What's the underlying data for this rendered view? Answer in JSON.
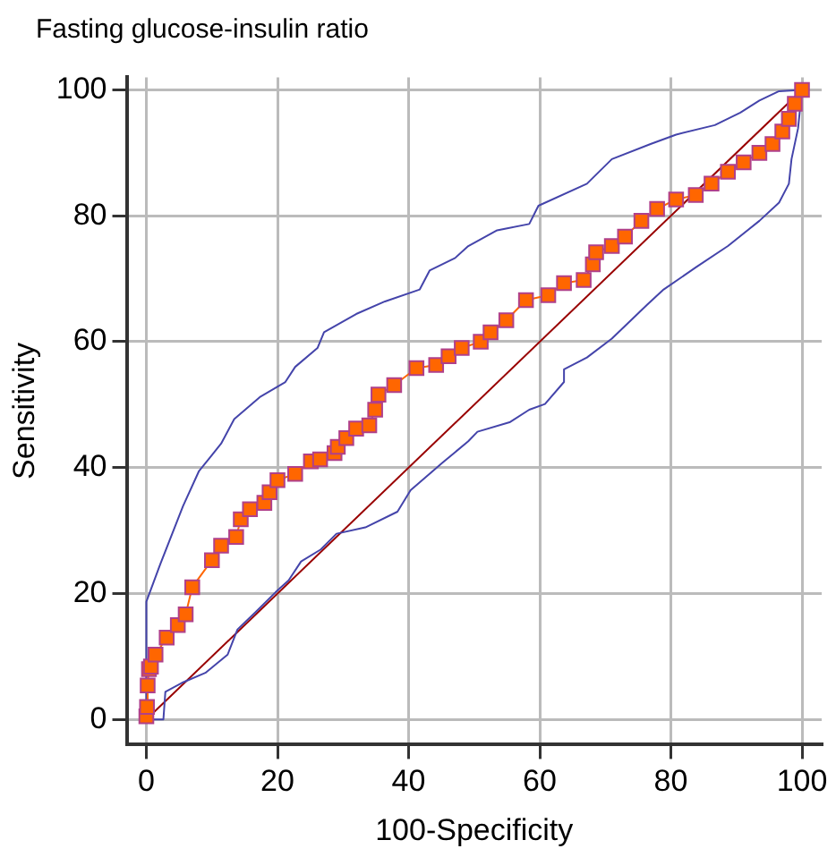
{
  "chart_data": {
    "type": "line",
    "title": "Fasting glucose-insulin ratio",
    "xlabel": "100-Specificity",
    "ylabel": "Sensitivity",
    "xlim": [
      -3,
      103
    ],
    "ylim": [
      -4,
      102
    ],
    "xticks": [
      0,
      20,
      40,
      60,
      80,
      100
    ],
    "yticks": [
      0,
      20,
      40,
      60,
      80,
      100
    ],
    "grid": true,
    "legend": false,
    "series": [
      {
        "color": "#990000",
        "marker": "none",
        "x": [
          0,
          100
        ],
        "values": [
          0,
          100
        ]
      },
      {
        "color": "#4444aa",
        "marker": "none",
        "x": [
          0,
          0,
          2.1,
          5.6,
          8,
          11.4,
          13.4,
          17.3,
          21.2,
          22.7,
          26.1,
          27.1,
          32,
          36.4,
          41.7,
          43.2,
          47.1,
          49.1,
          53.5,
          58.4,
          59.8,
          67.2,
          71,
          76.9,
          80.8,
          86.7,
          90.6,
          93.5,
          96.5,
          100
        ],
        "values": [
          0,
          18.7,
          24.6,
          33.9,
          39.4,
          43.8,
          47.7,
          51.2,
          53.6,
          56,
          59,
          61.5,
          64.4,
          66.4,
          68.3,
          71.3,
          73.3,
          75.2,
          77.7,
          78.7,
          81.6,
          85.1,
          89,
          91.4,
          92.9,
          94.4,
          96.4,
          98.3,
          99.8,
          100
        ]
      },
      {
        "color": "#4444aa",
        "marker": "none",
        "x": [
          0,
          2.6,
          2.9,
          5.6,
          9,
          12.4,
          13.9,
          16.8,
          19.7,
          21.7,
          23.6,
          26.6,
          29,
          33.4,
          38.3,
          40.3,
          45.2,
          49.1,
          50.5,
          55.4,
          58.4,
          60.8,
          63.7,
          63.7,
          67.2,
          71,
          76.4,
          78.9,
          83.8,
          88.7,
          93.5,
          96.5,
          98,
          98.4,
          99.4,
          100
        ],
        "values": [
          0,
          0,
          4.4,
          5.9,
          7.4,
          10.3,
          14.3,
          17.2,
          20.2,
          22.1,
          25.1,
          27,
          29.5,
          30.5,
          33,
          36.4,
          40.8,
          44.2,
          45.7,
          47.2,
          49.2,
          50.1,
          53.6,
          55.6,
          57.5,
          60.5,
          65.9,
          68.3,
          71.8,
          75.2,
          79.2,
          82.1,
          85.1,
          89,
          93.9,
          100
        ]
      },
      {
        "color": "#ff6600",
        "marker": "square",
        "x": [
          0,
          0.1,
          0.2,
          0.4,
          0.7,
          1.4,
          3.1,
          4.8,
          6,
          7,
          10,
          11.4,
          13.7,
          14.4,
          15.8,
          18,
          18.8,
          20,
          22.7,
          25.1,
          26.5,
          28.7,
          29.2,
          30.5,
          32,
          34,
          34.9,
          35.4,
          37.8,
          41.2,
          44.2,
          46.1,
          48.1,
          51,
          52.5,
          54.9,
          57.9,
          61.3,
          63.7,
          66.7,
          68.1,
          68.6,
          71,
          73,
          75.5,
          77.9,
          80.8,
          83.8,
          86.2,
          88.7,
          91.1,
          93.5,
          95.5,
          97,
          98,
          98.9,
          100
        ],
        "values": [
          0.5,
          2,
          5.4,
          8,
          8.4,
          10.3,
          13,
          15,
          16.7,
          21,
          25.3,
          27.6,
          29,
          31.8,
          33.4,
          34.4,
          36.1,
          38,
          39,
          41,
          41.3,
          42.3,
          43.3,
          44.7,
          46.2,
          46.7,
          49.2,
          51.6,
          53.1,
          55.8,
          56.3,
          57.7,
          59,
          60,
          61.5,
          63.4,
          66.6,
          67.4,
          69.3,
          69.8,
          72.3,
          74.2,
          75.2,
          76.7,
          79.2,
          81.1,
          82.6,
          83.3,
          85.1,
          87,
          88.5,
          90,
          91.4,
          93.4,
          95.4,
          97.8,
          100
        ]
      }
    ]
  }
}
